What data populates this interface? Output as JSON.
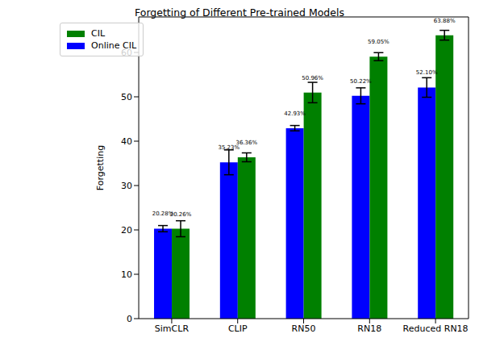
{
  "chart_data": {
    "type": "bar",
    "title": "Forgetting of Different Pre-trained Models",
    "y_label": "Forgetting",
    "categories": [
      "SimCLR",
      "CLIP",
      "RN50",
      "RN18",
      "Reduced RN18"
    ],
    "series": [
      {
        "name": "Online CIL",
        "color": "#0000ff",
        "values": [
          20.28,
          35.23,
          42.93,
          50.22,
          52.1
        ],
        "value_labels": [
          "20.28%",
          "35.23%",
          "42.93%",
          "50.22%",
          "52.10%"
        ],
        "errors": [
          0.7,
          2.8,
          0.6,
          1.8,
          2.2
        ]
      },
      {
        "name": "CIL",
        "color": "#008000",
        "values": [
          20.26,
          36.36,
          50.96,
          59.05,
          63.88
        ],
        "value_labels": [
          "20.26%",
          "36.36%",
          "50.96%",
          "59.05%",
          "63.88%"
        ],
        "errors": [
          1.8,
          1.0,
          2.3,
          0.9,
          1.1
        ]
      }
    ],
    "ylim": [
      0,
      68
    ],
    "yticks": [
      0,
      10,
      20,
      30,
      40,
      50,
      60
    ],
    "legend": "upper left",
    "data_labels": true,
    "grid": false
  }
}
